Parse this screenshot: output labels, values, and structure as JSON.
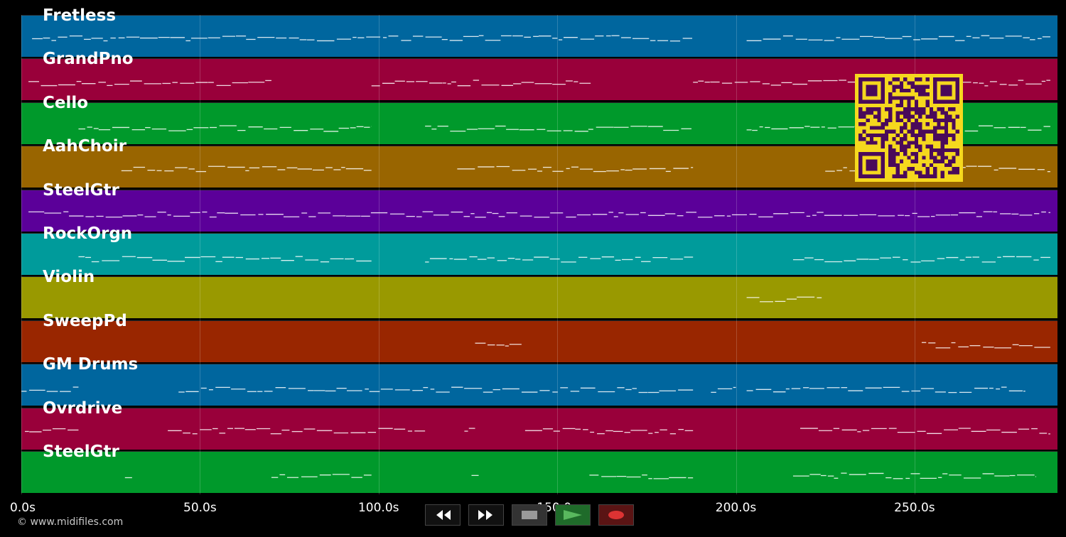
{
  "tracks": [
    {
      "name": "Fretless",
      "color": "#00669e"
    },
    {
      "name": "GrandPno",
      "color": "#99003a"
    },
    {
      "name": "Cello",
      "color": "#00992b"
    },
    {
      "name": "AahChoir",
      "color": "#996500"
    },
    {
      "name": "SteelGtr",
      "color": "#5b0099"
    },
    {
      "name": "RockOrgn",
      "color": "#009b9b"
    },
    {
      "name": "Violin",
      "color": "#999900"
    },
    {
      "name": "SweepPd",
      "color": "#992600"
    },
    {
      "name": "GM Drums",
      "color": "#00669e"
    },
    {
      "name": "Ovrdrive",
      "color": "#99003a"
    },
    {
      "name": "SteelGtr",
      "color": "#00992b"
    }
  ],
  "axis": {
    "unit": "s",
    "max_seconds": 290,
    "ticks": [
      {
        "value": 0,
        "label": "0.0s"
      },
      {
        "value": 50,
        "label": "50.0s"
      },
      {
        "value": 100,
        "label": "100.0s"
      },
      {
        "value": 150,
        "label": "150.0s"
      },
      {
        "value": 200,
        "label": "200.0s"
      },
      {
        "value": 250,
        "label": "250.0s"
      }
    ]
  },
  "transport": {
    "buttons": [
      {
        "name": "rewind-button",
        "icon": "rewind-icon",
        "color": "#111111"
      },
      {
        "name": "fast-forward-button",
        "icon": "fast-forward-icon",
        "color": "#111111"
      },
      {
        "name": "stop-button",
        "icon": "stop-icon",
        "color": "#333333"
      },
      {
        "name": "play-button",
        "icon": "play-icon",
        "color": "#1f6b2a"
      },
      {
        "name": "record-button",
        "icon": "record-icon",
        "color": "#5a1414"
      }
    ]
  },
  "copyright": "© www.midifiles.com",
  "qr": {
    "fg": "#4a0a5a",
    "bg": "#f5d81e"
  }
}
